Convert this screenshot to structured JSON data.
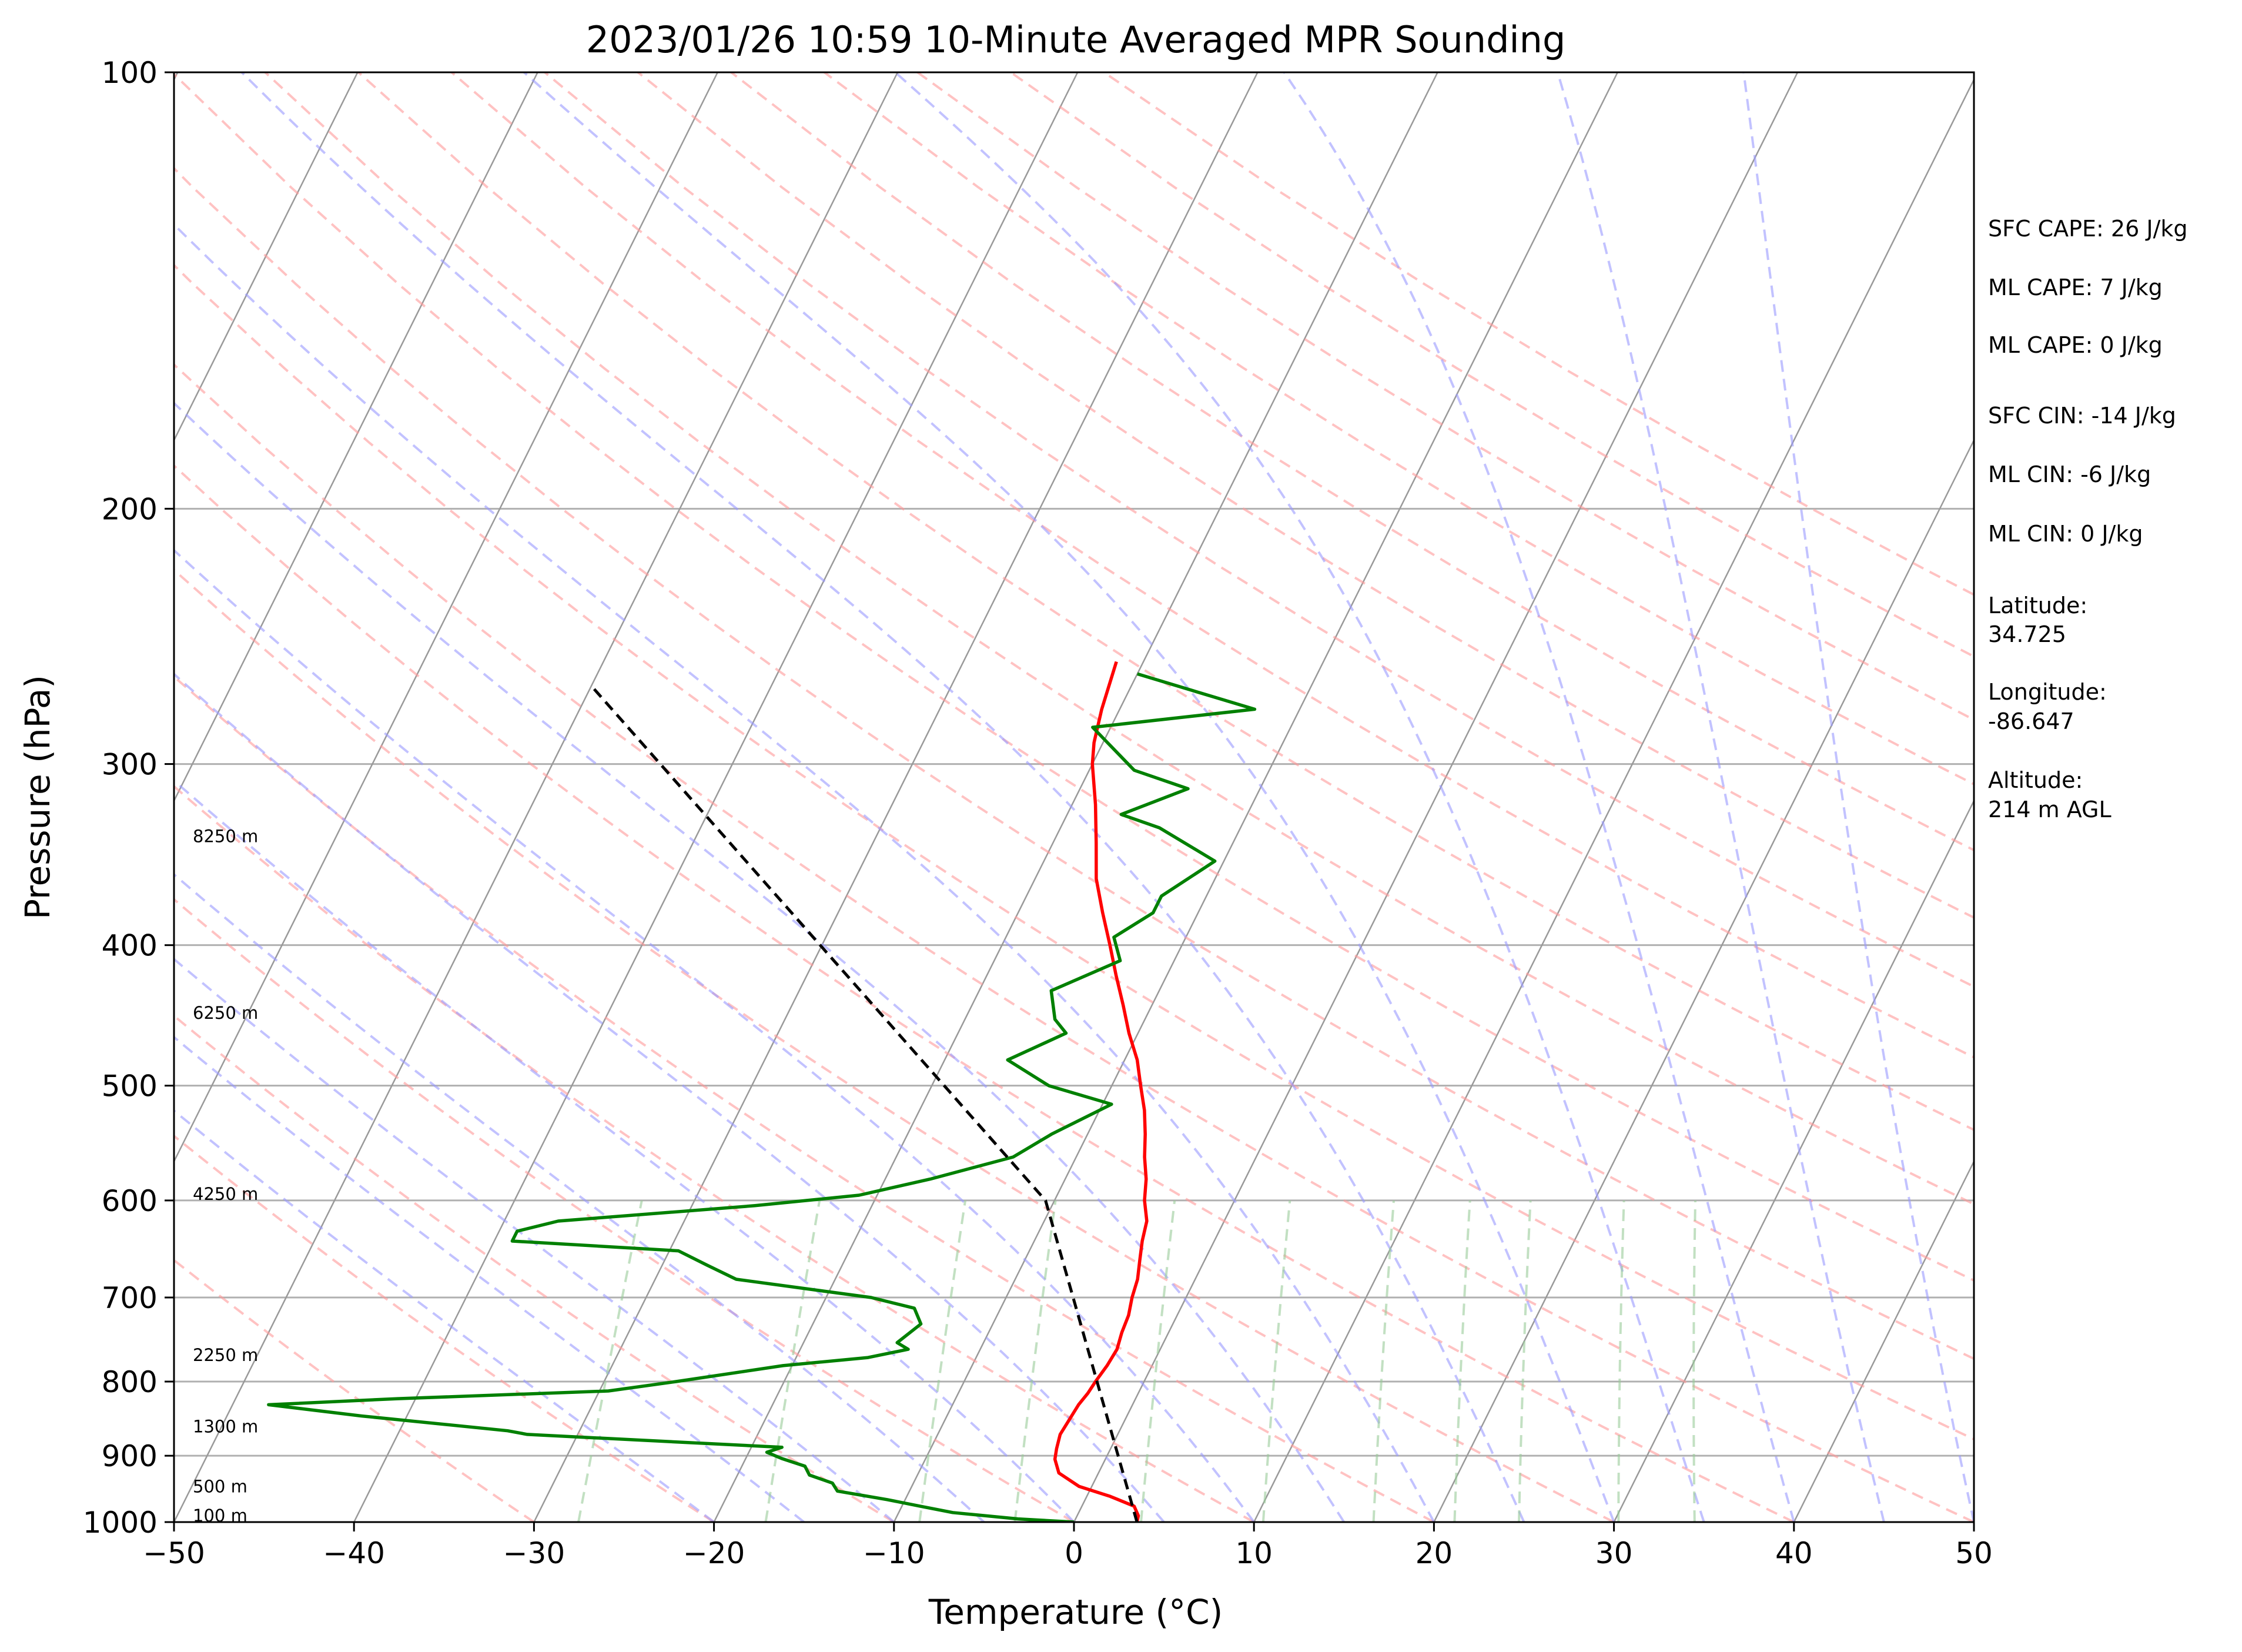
{
  "chart_data": {
    "type": "line",
    "title": "2023/01/26 10:59 10-Minute Averaged MPR Sounding",
    "xlabel": "Temperature (°C)",
    "ylabel": "Pressure (hPa)",
    "xlim": [
      -50,
      50
    ],
    "ylim": [
      1000,
      100
    ],
    "y_scale": "log",
    "x_ticks": [
      "−50",
      "−40",
      "−30",
      "−20",
      "−10",
      "0",
      "10",
      "20",
      "30",
      "40",
      "50"
    ],
    "x_tick_values": [
      -50,
      -40,
      -30,
      -20,
      -10,
      0,
      10,
      20,
      30,
      40,
      50
    ],
    "y_ticks": [
      "1000",
      "900",
      "800",
      "700",
      "600",
      "500",
      "400",
      "300",
      "200",
      "100"
    ],
    "y_tick_values": [
      1000,
      900,
      800,
      700,
      600,
      500,
      400,
      300,
      200,
      100
    ],
    "grid": true,
    "colors": {
      "temperature": "#ff0000",
      "dewpoint": "#008000",
      "parcel": "#000000",
      "dry_adiabats": "#ff9999",
      "moist_adiabats": "#9999ff",
      "mixing_ratio": "#99cc99",
      "isotherms": "#999999"
    },
    "series": [
      {
        "key": "temperature",
        "pressure": [
          1000,
          990,
          975,
          960,
          945,
          925,
          905,
          890,
          870,
          850,
          830,
          815,
          800,
          780,
          760,
          740,
          720,
          700,
          680,
          660,
          640,
          620,
          600,
          580,
          560,
          540,
          520,
          500,
          480,
          460,
          440,
          420,
          400,
          380,
          360,
          340,
          320,
          300,
          290,
          275,
          255
        ],
        "temp": [
          3.5,
          3.4,
          2.9,
          1.3,
          -0.7,
          -2.2,
          -2.8,
          -3.0,
          -3.2,
          -3.1,
          -3.0,
          -2.8,
          -2.7,
          -2.5,
          -2.4,
          -2.6,
          -2.7,
          -3.0,
          -3.2,
          -3.6,
          -4.0,
          -4.3,
          -5.0,
          -5.5,
          -6.2,
          -6.8,
          -7.5,
          -8.4,
          -9.3,
          -10.5,
          -11.6,
          -12.8,
          -14.0,
          -15.3,
          -16.6,
          -17.6,
          -18.7,
          -20.0,
          -20.5,
          -21.0,
          -21.5
        ]
      },
      {
        "key": "dewpoint",
        "pressure": [
          1000,
          995,
          985,
          975,
          965,
          952,
          940,
          928,
          915,
          904,
          895,
          888,
          870,
          865,
          845,
          830,
          822,
          812,
          800,
          780,
          770,
          760,
          752,
          730,
          712,
          700,
          680,
          665,
          650,
          640,
          630,
          620,
          605,
          595,
          580,
          560,
          540,
          515,
          500,
          480,
          460,
          450,
          430,
          410,
          395,
          380,
          370,
          350,
          332,
          325,
          312,
          303,
          283,
          275,
          260
        ],
        "temp": [
          0.0,
          -3.2,
          -7.0,
          -9.0,
          -11.0,
          -14.0,
          -14.5,
          -16.0,
          -16.5,
          -18.0,
          -19.0,
          -18.3,
          -32.8,
          -34.0,
          -42.5,
          -48.0,
          -41.0,
          -29.5,
          -26.0,
          -20.5,
          -16.0,
          -14.0,
          -14.8,
          -14.0,
          -14.8,
          -17.5,
          -25.5,
          -27.5,
          -29.5,
          -39.0,
          -39.0,
          -37.0,
          -26.5,
          -21.0,
          -17.5,
          -13.5,
          -12.0,
          -9.5,
          -13.5,
          -16.5,
          -14.0,
          -15.0,
          -16.0,
          -13.0,
          -14.0,
          -12.5,
          -12.5,
          -10.5,
          -14.5,
          -17.0,
          -14.0,
          -17.5,
          -21.0,
          -12.5,
          -20.0
        ]
      },
      {
        "key": "parcel",
        "pressure": [
          1000,
          600,
          265
        ],
        "temp": [
          3.5,
          -10.5,
          -50
        ]
      }
    ],
    "height_labels": [
      {
        "text": "100 m",
        "pressure": 1000
      },
      {
        "text": "500 m",
        "pressure": 955
      },
      {
        "text": "1300 m",
        "pressure": 868
      },
      {
        "text": "2250 m",
        "pressure": 775
      },
      {
        "text": "4250 m",
        "pressure": 600
      },
      {
        "text": "6250 m",
        "pressure": 450
      },
      {
        "text": "8250 m",
        "pressure": 340
      }
    ],
    "stats": [
      "SFC CAPE: 26 J/kg",
      "ML CAPE: 7 J/kg",
      "ML CAPE: 0 J/kg",
      "SFC CIN: -14 J/kg",
      "ML CIN: -6 J/kg",
      "ML CIN: 0 J/kg",
      "Latitude:",
      "34.725",
      "Longitude:",
      "-86.647",
      "Altitude:",
      "214 m AGL"
    ]
  }
}
